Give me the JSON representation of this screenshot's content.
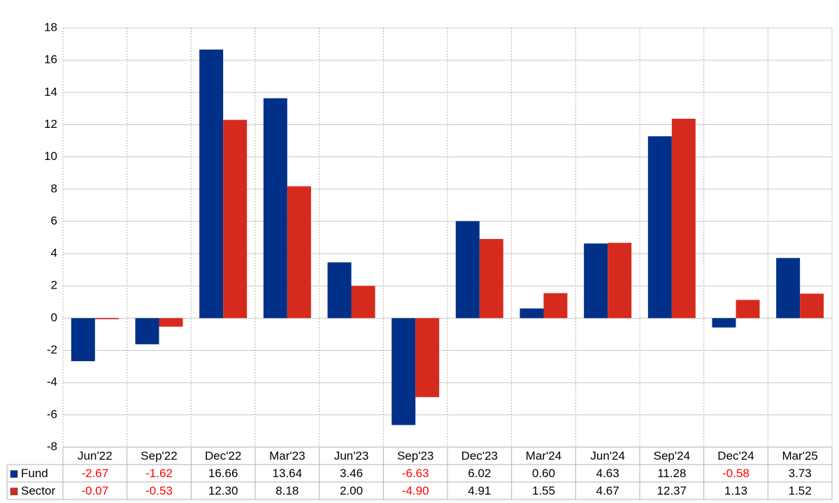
{
  "chart_data": {
    "type": "bar",
    "categories": [
      "Jun'22",
      "Sep'22",
      "Dec'22",
      "Mar'23",
      "Jun'23",
      "Sep'23",
      "Dec'23",
      "Mar'24",
      "Jun'24",
      "Sep'24",
      "Dec'24",
      "Mar'25"
    ],
    "series": [
      {
        "name": "Fund",
        "color": "#003087",
        "values": [
          -2.67,
          -1.62,
          16.66,
          13.64,
          3.46,
          -6.63,
          6.02,
          0.6,
          4.63,
          11.28,
          -0.58,
          3.73
        ],
        "value_labels": [
          "-2.67",
          "-1.62",
          "16.66",
          "13.64",
          "3.46",
          "-6.63",
          "6.02",
          "0.60",
          "4.63",
          "11.28",
          "-0.58",
          "3.73"
        ]
      },
      {
        "name": "Sector",
        "color": "#d52b1e",
        "values": [
          -0.07,
          -0.53,
          12.3,
          8.18,
          2.0,
          -4.9,
          4.91,
          1.55,
          4.67,
          12.37,
          1.13,
          1.52
        ],
        "value_labels": [
          "-0.07",
          "-0.53",
          "12.30",
          "8.18",
          "2.00",
          "-4.90",
          "4.91",
          "1.55",
          "4.67",
          "12.37",
          "1.13",
          "1.52"
        ]
      }
    ],
    "ylim": [
      -8,
      18
    ],
    "yticks": [
      -8,
      -6,
      -4,
      -2,
      0,
      2,
      4,
      6,
      8,
      10,
      12,
      14,
      16,
      18
    ],
    "grid": true,
    "negative_label_color": "#ff0000"
  }
}
